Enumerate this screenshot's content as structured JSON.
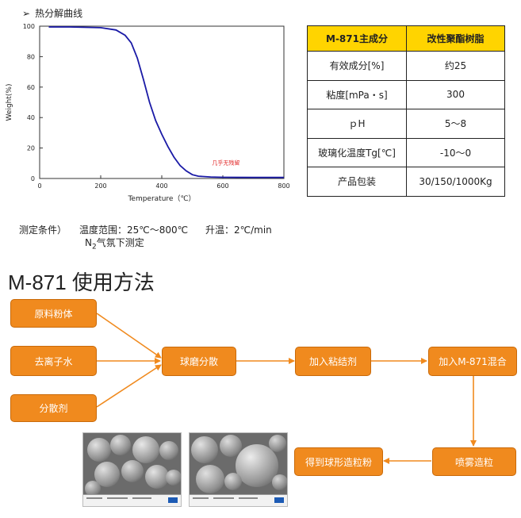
{
  "header": {
    "title": "热分解曲线"
  },
  "chart_data": {
    "type": "line",
    "xlabel": "Temperature（℃）",
    "ylabel": "Weight(%)",
    "xlim": [
      0,
      800
    ],
    "ylim": [
      0,
      100
    ],
    "xticks": [
      "0",
      "200",
      "400",
      "600",
      "800"
    ],
    "yticks": [
      "0",
      "20",
      "40",
      "60",
      "80",
      "100"
    ],
    "annotation": "几乎无残留",
    "grid": false,
    "series": [
      {
        "color": "#1a1aa6",
        "x": [
          30,
          100,
          200,
          250,
          280,
          300,
          320,
          340,
          360,
          380,
          400,
          420,
          440,
          460,
          480,
          500,
          520,
          560,
          600,
          700,
          800
        ],
        "y": [
          99.5,
          99.5,
          99,
          97.5,
          94,
          89,
          79,
          65,
          50,
          38,
          29,
          21,
          14,
          8.5,
          5,
          2.5,
          1.5,
          1.0,
          0.8,
          0.7,
          0.7
        ]
      }
    ]
  },
  "table": {
    "header": [
      "M-871主成分",
      "改性聚酯树脂"
    ],
    "rows": [
      [
        "有效成分[%]",
        "约25"
      ],
      [
        "粘度[mPa・s]",
        "300"
      ],
      [
        "ｐH",
        "5～8"
      ],
      [
        "玻璃化温度Tg[℃]",
        "-10～0"
      ],
      [
        "产品包装",
        "30/150/1000Kg"
      ]
    ]
  },
  "conditions": {
    "label": "测定条件）",
    "range": "温度范围：25℃～800℃",
    "rate": "升温：2℃/min",
    "gas_prefix": "N",
    "gas_sub": "2",
    "gas_suffix": "气氛下测定"
  },
  "usage": {
    "title": "M-871 使用方法",
    "steps": {
      "raw_powder": "原料粉体",
      "di_water": "去离子水",
      "dispersant": "分散剂",
      "ball_mill": "球磨分散",
      "add_binder": "加入粘结剂",
      "add_m871": "加入M-871混合",
      "spray": "喷雾造粒",
      "result": "得到球形造粒粉"
    },
    "colors": {
      "box": "#f08a1e",
      "arrow": "#f08a1e"
    }
  }
}
